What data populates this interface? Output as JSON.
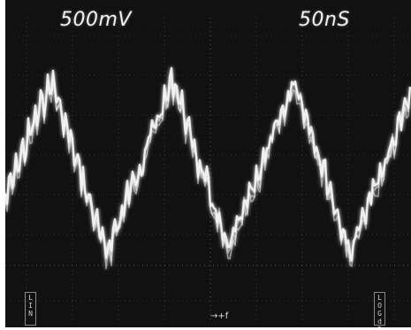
{
  "scope": {
    "volts_per_div": "500mV",
    "time_per_div": "50nS",
    "left_mode_label": "LIN",
    "right_mode_label": "LOG dB",
    "trigger_marker": "→+f",
    "trace_color": "#f2f2f2",
    "graticule_color": "#8a8a8a",
    "background_color": "#111111"
  }
}
